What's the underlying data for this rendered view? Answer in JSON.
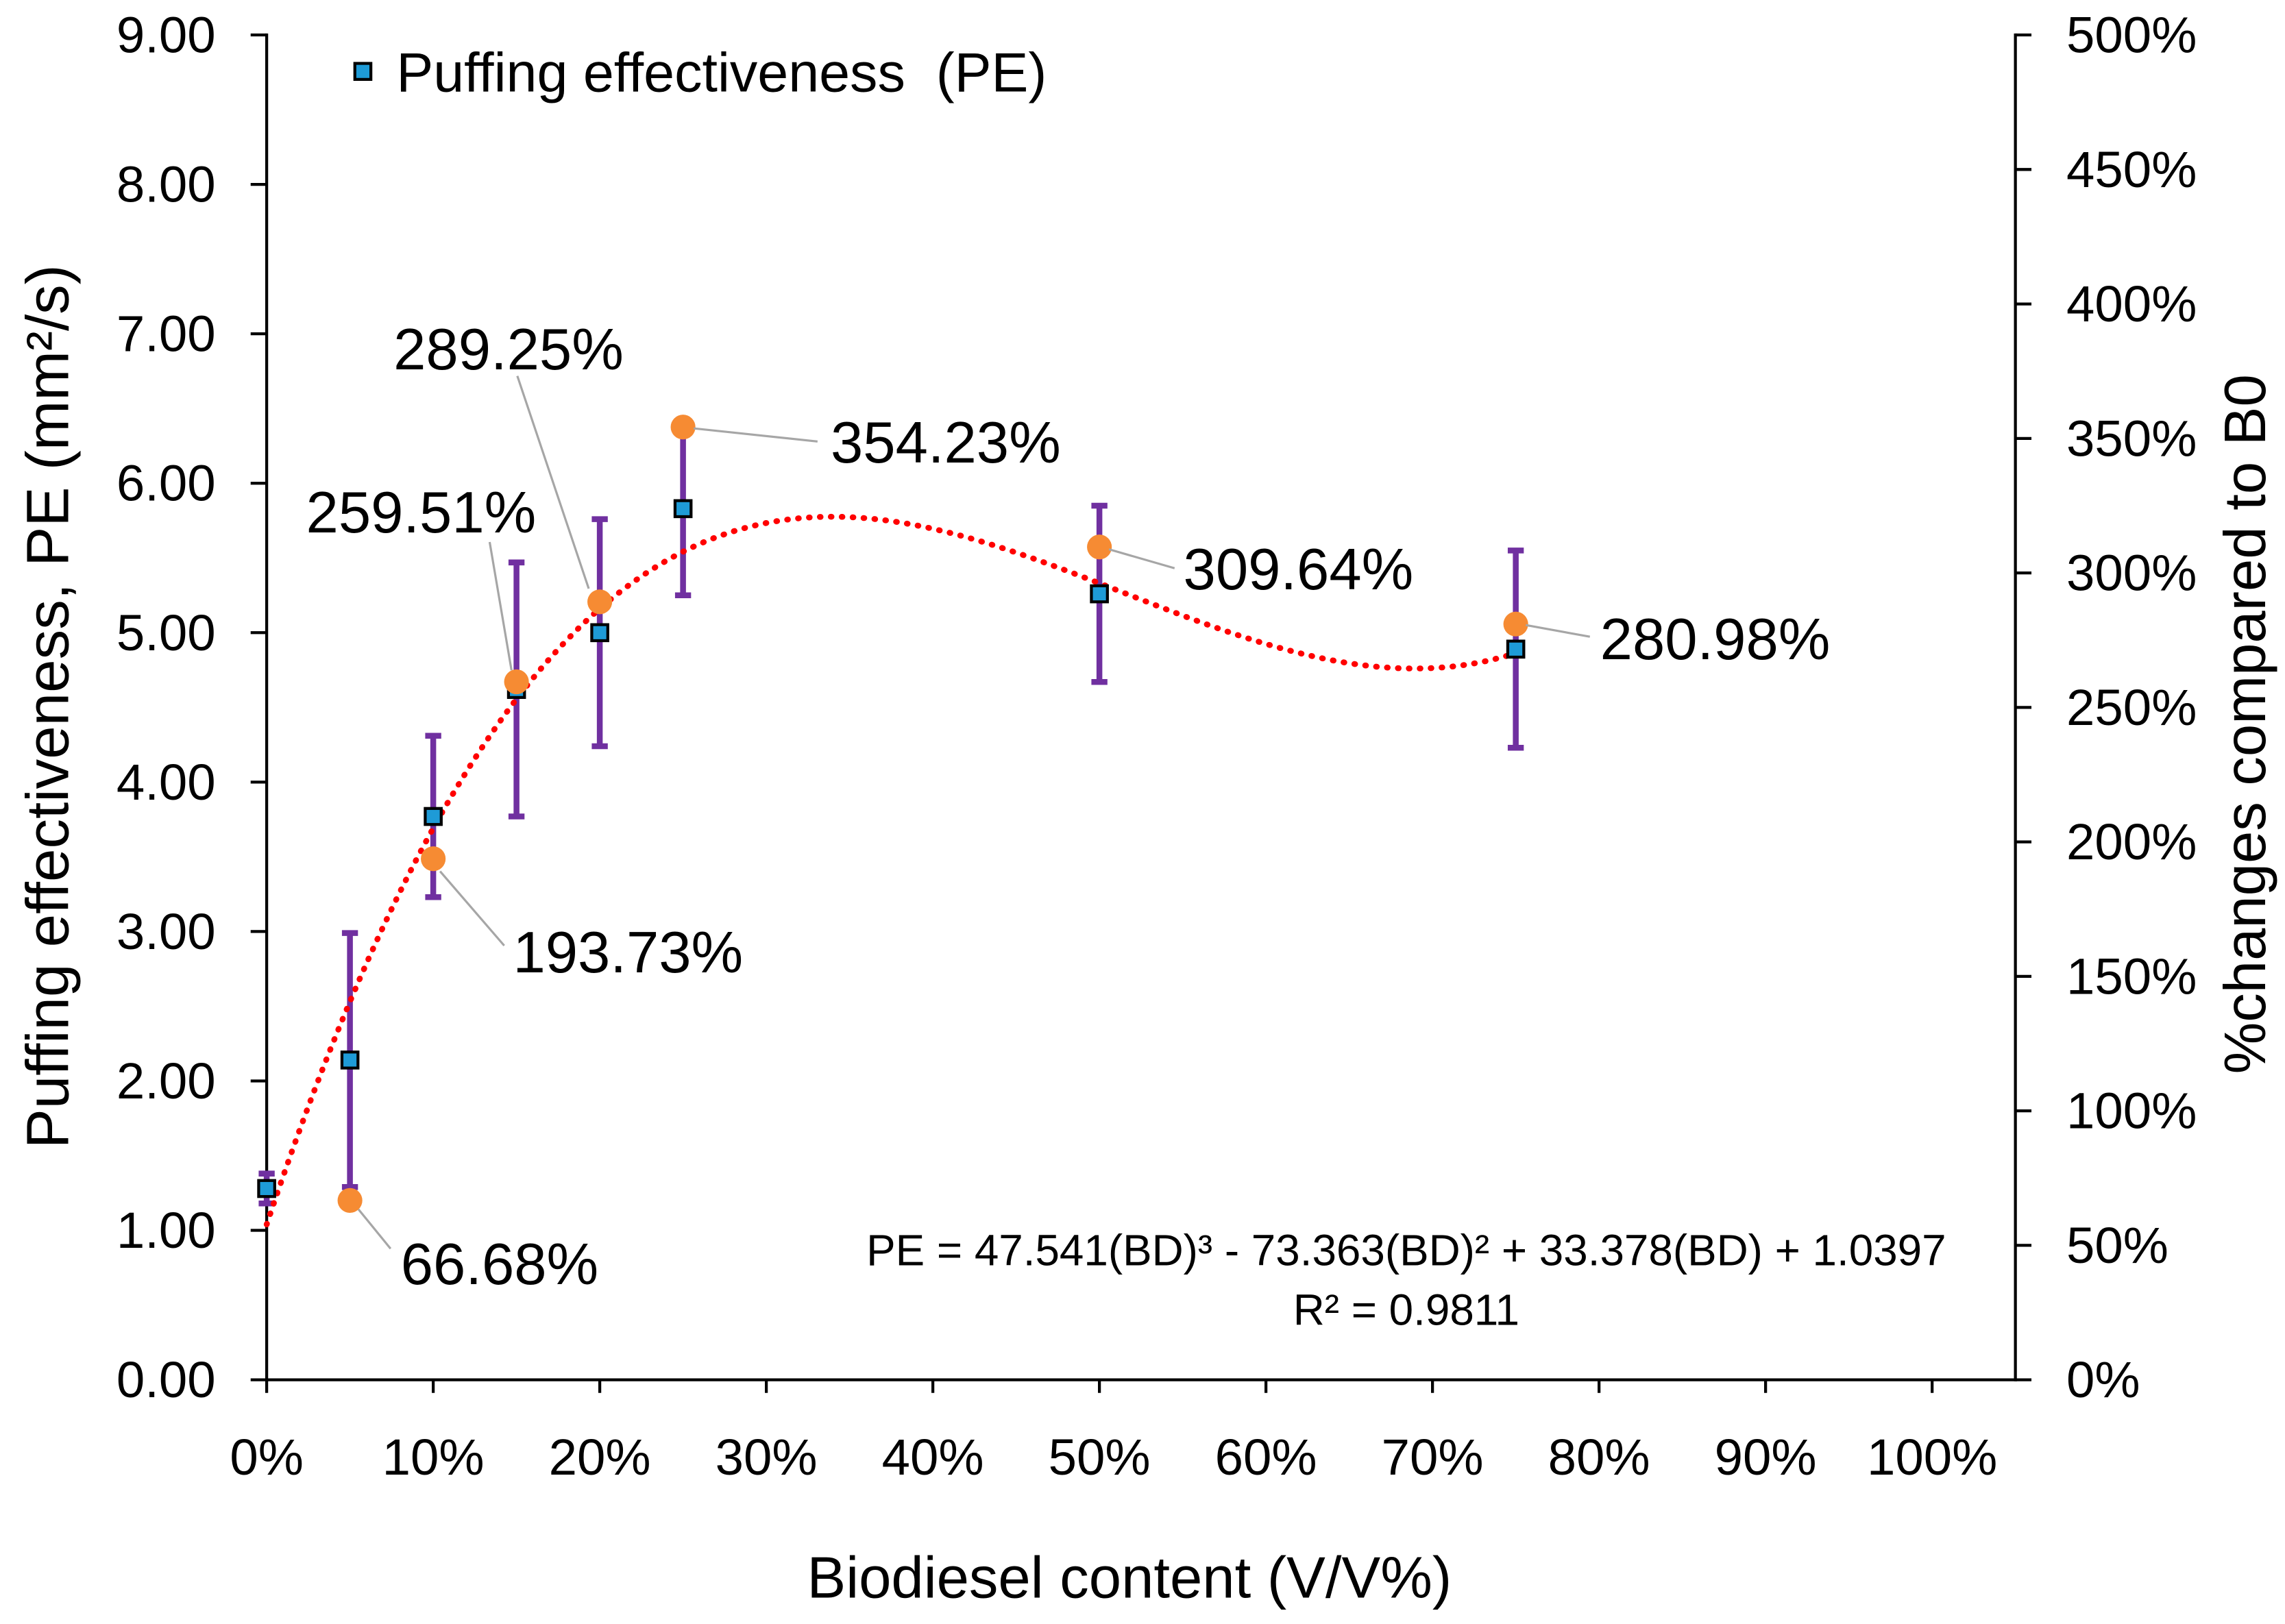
{
  "chart_data": {
    "type": "scatter",
    "xlabel": "Biodiesel content (V/V%)",
    "ylabel": "Puffing effectiveness, PE (mm²/s)",
    "y2label": "%changes compared to B0",
    "xlim": [
      0,
      1.05
    ],
    "ylim": [
      0,
      9
    ],
    "y2lim": [
      0,
      500
    ],
    "grid": false,
    "legend_position": "top-left",
    "x_ticks": [
      0,
      0.1,
      0.2,
      0.3,
      0.4,
      0.5,
      0.6,
      0.7,
      0.8,
      0.9,
      1.0
    ],
    "x_tick_labels": [
      "0%",
      "10%",
      "20%",
      "30%",
      "40%",
      "50%",
      "60%",
      "70%",
      "80%",
      "90%",
      "100%"
    ],
    "y_ticks": [
      0,
      1,
      2,
      3,
      4,
      5,
      6,
      7,
      8,
      9
    ],
    "y_tick_labels": [
      "0.00",
      "1.00",
      "2.00",
      "3.00",
      "4.00",
      "5.00",
      "6.00",
      "7.00",
      "8.00",
      "9.00"
    ],
    "y2_ticks": [
      0,
      50,
      100,
      150,
      200,
      250,
      300,
      350,
      400,
      450,
      500
    ],
    "y2_tick_labels": [
      "0%",
      "50%",
      "100%",
      "150%",
      "200%",
      "250%",
      "300%",
      "350%",
      "400%",
      "450%",
      "500%"
    ],
    "series": [
      {
        "name": "Puffing effectiveness  (PE)",
        "color": "#1E9BD7",
        "error_color": "#7030A0",
        "x": [
          0,
          0.05,
          0.1,
          0.15,
          0.2,
          0.25,
          0.5,
          0.75
        ],
        "y": [
          1.28,
          2.14,
          3.77,
          4.62,
          5.0,
          5.83,
          5.26,
          4.89
        ],
        "error": [
          0.1,
          0.85,
          0.54,
          0.85,
          0.76,
          0.58,
          0.59,
          0.66
        ]
      },
      {
        "color": "#F68B33",
        "x": [
          0.05,
          0.1,
          0.15,
          0.2,
          0.25,
          0.5,
          0.75
        ],
        "y": [
          66.68,
          193.73,
          259.51,
          289.25,
          354.23,
          309.64,
          280.98
        ],
        "labels": [
          "66.68%",
          "193.73%",
          "259.51%",
          "289.25%",
          "354.23%",
          "309.64%",
          "280.98%"
        ]
      }
    ],
    "trendline": {
      "order": 3,
      "coefficients": [
        47.541,
        -73.363,
        33.378,
        1.0397
      ],
      "x_range": [
        0,
        0.75
      ],
      "color": "#FF0000",
      "equation": "PE = 47.541(BD)³ - 73.363(BD)² + 33.378(BD) + 1.0397",
      "r2_text": "R² = 0.9811"
    }
  }
}
